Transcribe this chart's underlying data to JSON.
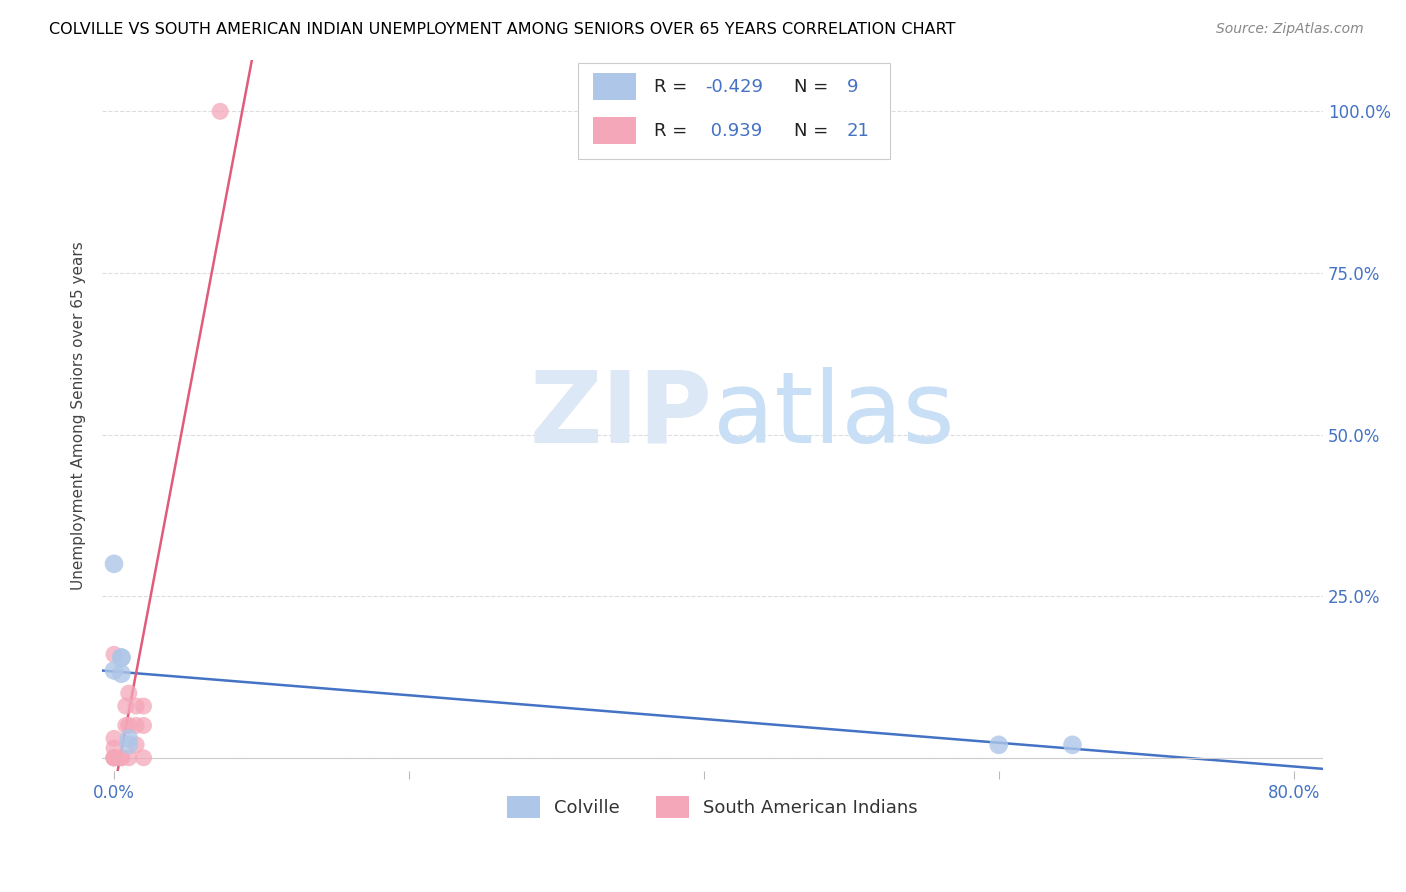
{
  "title": "COLVILLE VS SOUTH AMERICAN INDIAN UNEMPLOYMENT AMONG SENIORS OVER 65 YEARS CORRELATION CHART",
  "source": "Source: ZipAtlas.com",
  "ylabel_left": "Unemployment Among Seniors over 65 years",
  "colville_R": -0.429,
  "colville_N": 9,
  "sai_R": 0.939,
  "sai_N": 21,
  "colville_color": "#aec6e8",
  "colville_line_color": "#4472c4",
  "sai_color": "#f4a7b9",
  "sai_line_color": "#e05c7a",
  "colville_x": [
    0.0,
    0.0,
    0.005,
    0.005,
    0.005,
    0.01,
    0.01,
    0.6,
    0.65
  ],
  "colville_y": [
    0.3,
    0.135,
    0.155,
    0.155,
    0.13,
    0.03,
    0.02,
    0.02,
    0.02
  ],
  "sai_x": [
    0.0,
    0.0,
    0.0,
    0.0,
    0.0,
    0.0,
    0.0,
    0.005,
    0.005,
    0.008,
    0.008,
    0.01,
    0.01,
    0.01,
    0.015,
    0.015,
    0.015,
    0.02,
    0.02,
    0.02,
    0.072
  ],
  "sai_y": [
    0.0,
    0.0,
    0.0,
    0.0,
    0.015,
    0.03,
    0.16,
    0.0,
    0.0,
    0.05,
    0.08,
    0.0,
    0.05,
    0.1,
    0.02,
    0.05,
    0.08,
    0.0,
    0.05,
    0.08,
    1.0
  ],
  "xlim": [
    -0.008,
    0.82
  ],
  "ylim": [
    -0.02,
    1.08
  ],
  "x_tick_positions": [
    0.0,
    0.2,
    0.4,
    0.6,
    0.8
  ],
  "y_tick_positions": [
    0.0,
    0.25,
    0.5,
    0.75,
    1.0
  ],
  "label_color": "#4472c4",
  "grid_color": "#dddddd",
  "watermark_zip_color": "#dce8f5",
  "watermark_atlas_color": "#c8dff5"
}
